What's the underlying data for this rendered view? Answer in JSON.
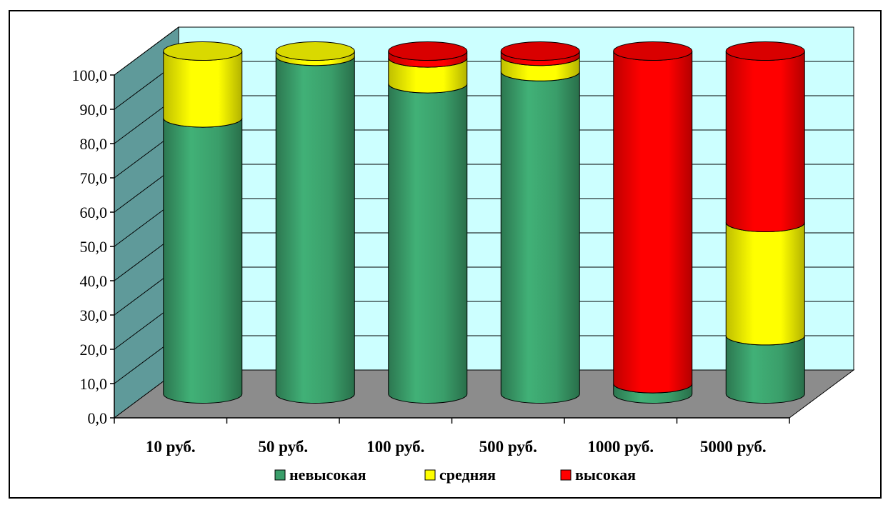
{
  "chart_data": {
    "type": "bar",
    "stacked": true,
    "style": "3d-cylinder",
    "categories": [
      "10 руб.",
      "50 руб.",
      "100 руб.",
      "500 руб.",
      "1000 руб.",
      "5000 руб."
    ],
    "series": [
      {
        "name": "невысокая",
        "color": "#3a9e6a",
        "values": [
          80.5,
          98.5,
          90.5,
          94.0,
          3.0,
          17.0
        ]
      },
      {
        "name": "средняя",
        "color": "#ffff00",
        "values": [
          19.5,
          1.5,
          7.5,
          4.5,
          0.0,
          33.0
        ]
      },
      {
        "name": "высокая",
        "color": "#ff0000",
        "values": [
          0.0,
          0.0,
          2.0,
          1.5,
          97.0,
          50.0
        ]
      }
    ],
    "ylim": [
      0,
      100
    ],
    "yticks": [
      "0,0",
      "10,0",
      "20,0",
      "30,0",
      "40,0",
      "50,0",
      "60,0",
      "70,0",
      "80,0",
      "90,0",
      "100,0"
    ],
    "grid": true,
    "legend_position": "bottom",
    "colors": {
      "back_wall": "#ccffff",
      "side_wall": "#5f9a9a",
      "floor": "#8c8c8c"
    }
  }
}
